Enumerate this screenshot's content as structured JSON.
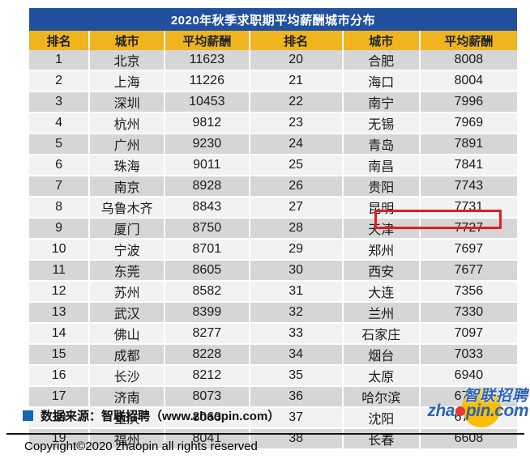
{
  "title": "2020年秋季求职期平均薪酬城市分布",
  "table": {
    "columns": [
      "排名",
      "城市",
      "平均薪酬",
      "排名",
      "城市",
      "平均薪酬"
    ]
  },
  "chart_data": {
    "type": "table",
    "title": "2020年秋季求职期平均薪酬城市分布",
    "columns": [
      "排名",
      "城市",
      "平均薪酬"
    ],
    "rows": [
      [
        1,
        "北京",
        11623
      ],
      [
        2,
        "上海",
        11226
      ],
      [
        3,
        "深圳",
        10453
      ],
      [
        4,
        "杭州",
        9812
      ],
      [
        5,
        "广州",
        9230
      ],
      [
        6,
        "珠海",
        9011
      ],
      [
        7,
        "南京",
        8928
      ],
      [
        8,
        "乌鲁木齐",
        8843
      ],
      [
        9,
        "厦门",
        8750
      ],
      [
        10,
        "宁波",
        8701
      ],
      [
        11,
        "东莞",
        8605
      ],
      [
        12,
        "苏州",
        8582
      ],
      [
        13,
        "武汉",
        8399
      ],
      [
        14,
        "佛山",
        8277
      ],
      [
        15,
        "成都",
        8228
      ],
      [
        16,
        "长沙",
        8212
      ],
      [
        17,
        "济南",
        8073
      ],
      [
        18,
        "重庆",
        8063
      ],
      [
        19,
        "福州",
        8041
      ],
      [
        20,
        "合肥",
        8008
      ],
      [
        21,
        "海口",
        8004
      ],
      [
        22,
        "南宁",
        7996
      ],
      [
        23,
        "无锡",
        7969
      ],
      [
        24,
        "青岛",
        7891
      ],
      [
        25,
        "南昌",
        7841
      ],
      [
        26,
        "贵阳",
        7743
      ],
      [
        27,
        "昆明",
        7731
      ],
      [
        28,
        "天津",
        7727
      ],
      [
        29,
        "郑州",
        7697
      ],
      [
        30,
        "西安",
        7677
      ],
      [
        31,
        "大连",
        7356
      ],
      [
        32,
        "兰州",
        7330
      ],
      [
        33,
        "石家庄",
        7097
      ],
      [
        34,
        "烟台",
        7033
      ],
      [
        35,
        "太原",
        6940
      ],
      [
        36,
        "哈尔滨",
        6717
      ],
      [
        37,
        "沈阳",
        6715
      ],
      [
        38,
        "长春",
        6608
      ]
    ],
    "layout": "two-column split: ranks 1-19 in left half, ranks 20-38 in right half",
    "highlighted_row": {
      "rank": 29,
      "city": "郑州",
      "salary": 7697
    }
  },
  "footer": {
    "source": "数据来源：智联招聘（www.zhaopin.com）",
    "copyright": "Copyright©2020 zhaopin all rights reserved"
  },
  "logo": {
    "cn": "智联招聘",
    "en": "zhaopin.com"
  },
  "colors": {
    "title_bar": "#21519E",
    "header": "#F0B41F",
    "row_dark": "#D6D6D6",
    "row_light": "#F2F2F2",
    "highlight_border": "#E01F1F",
    "source_bullet": "#1565B0",
    "logo_blue": "#2B63B5",
    "logo_yellow": "#F9BE00",
    "logo_red": "#E03C31"
  }
}
